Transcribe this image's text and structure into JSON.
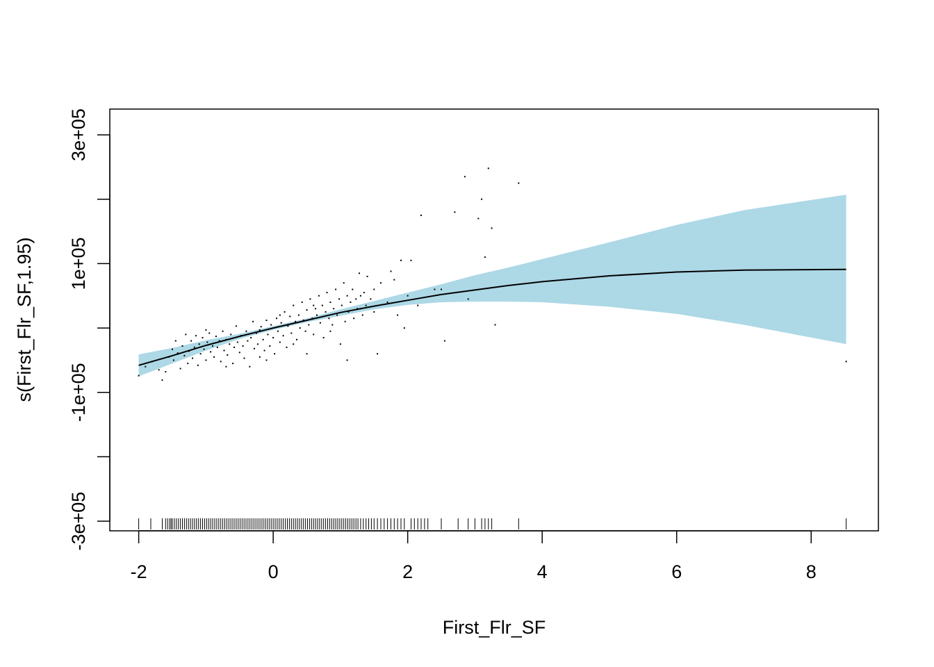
{
  "chart_data": {
    "type": "line",
    "title": "",
    "xlabel": "First_Flr_SF",
    "ylabel": "s(First_Flr_SF,1.95)",
    "xlim": [
      -2.43,
      9.0
    ],
    "ylim": [
      -315000,
      340000
    ],
    "x_ticks": [
      -2,
      0,
      2,
      4,
      6,
      8
    ],
    "x_tick_labels": [
      "-2",
      "0",
      "2",
      "4",
      "6",
      "8"
    ],
    "y_ticks": [
      -300000,
      -200000,
      -100000,
      0,
      100000,
      200000,
      300000
    ],
    "y_tick_labels": [
      "-3e+05",
      "",
      "-1e+05",
      "",
      "1e+05",
      "",
      "3e+05"
    ],
    "colors": {
      "band": "#add8e6",
      "line": "#000000",
      "points": "#000000"
    },
    "fit": {
      "x": [
        -2.0,
        -1.5,
        -1.0,
        -0.5,
        0.0,
        0.5,
        1.0,
        1.5,
        2.0,
        2.5,
        3.0,
        3.5,
        4.0,
        5.0,
        6.0,
        7.0,
        8.52
      ],
      "y": [
        -58000,
        -43000,
        -27000,
        -13000,
        0,
        12000,
        24000,
        34000,
        43000,
        52000,
        59000,
        66000,
        72000,
        81000,
        87000,
        90000,
        91000
      ],
      "lower": [
        -75000,
        -55000,
        -35000,
        -17000,
        -3000,
        9000,
        19000,
        29000,
        36000,
        40000,
        41000,
        41000,
        40000,
        33000,
        22000,
        5000,
        -25000
      ],
      "upper": [
        -41000,
        -31000,
        -19000,
        -9000,
        3000,
        15000,
        29000,
        42000,
        55000,
        68000,
        82000,
        94000,
        107000,
        133000,
        160000,
        183000,
        207000
      ]
    },
    "rug_x": [
      -2.0,
      -1.82,
      -1.65,
      -1.6,
      -1.57,
      -1.54,
      -1.52,
      -1.5,
      -1.47,
      -1.44,
      -1.41,
      -1.38,
      -1.35,
      -1.32,
      -1.29,
      -1.26,
      -1.23,
      -1.2,
      -1.17,
      -1.14,
      -1.11,
      -1.08,
      -1.05,
      -1.02,
      -0.99,
      -0.96,
      -0.93,
      -0.9,
      -0.87,
      -0.84,
      -0.81,
      -0.78,
      -0.75,
      -0.72,
      -0.69,
      -0.66,
      -0.63,
      -0.6,
      -0.57,
      -0.54,
      -0.51,
      -0.48,
      -0.45,
      -0.42,
      -0.39,
      -0.36,
      -0.33,
      -0.3,
      -0.27,
      -0.24,
      -0.21,
      -0.18,
      -0.15,
      -0.12,
      -0.09,
      -0.06,
      -0.03,
      0.0,
      0.03,
      0.06,
      0.09,
      0.12,
      0.15,
      0.18,
      0.21,
      0.24,
      0.27,
      0.3,
      0.33,
      0.36,
      0.39,
      0.42,
      0.45,
      0.48,
      0.51,
      0.54,
      0.57,
      0.6,
      0.63,
      0.66,
      0.69,
      0.72,
      0.75,
      0.78,
      0.81,
      0.84,
      0.87,
      0.9,
      0.93,
      0.96,
      0.99,
      1.02,
      1.05,
      1.08,
      1.11,
      1.14,
      1.17,
      1.2,
      1.23,
      1.26,
      1.3,
      1.34,
      1.38,
      1.42,
      1.46,
      1.5,
      1.55,
      1.6,
      1.65,
      1.7,
      1.75,
      1.8,
      1.85,
      1.9,
      1.95,
      2.05,
      2.1,
      2.15,
      2.2,
      2.25,
      2.3,
      2.5,
      2.75,
      2.9,
      3.0,
      3.1,
      3.15,
      3.2,
      3.25,
      3.65,
      8.52
    ],
    "points": [
      [
        -2.0,
        -74000
      ],
      [
        -1.9,
        -60000
      ],
      [
        -1.8,
        -52000
      ],
      [
        -1.7,
        -65000
      ],
      [
        -1.65,
        -81000
      ],
      [
        -1.6,
        -68000
      ],
      [
        -1.55,
        -45000
      ],
      [
        -1.5,
        -33000
      ],
      [
        -1.48,
        -50000
      ],
      [
        -1.45,
        -20000
      ],
      [
        -1.42,
        -39000
      ],
      [
        -1.38,
        -63000
      ],
      [
        -1.35,
        -28000
      ],
      [
        -1.32,
        -43000
      ],
      [
        -1.3,
        -10000
      ],
      [
        -1.27,
        -55000
      ],
      [
        -1.25,
        -36000
      ],
      [
        -1.22,
        -20000
      ],
      [
        -1.2,
        -47000
      ],
      [
        -1.17,
        -30000
      ],
      [
        -1.15,
        -12000
      ],
      [
        -1.12,
        -58000
      ],
      [
        -1.1,
        -25000
      ],
      [
        -1.08,
        -40000
      ],
      [
        -1.05,
        -15000
      ],
      [
        -1.03,
        -33000
      ],
      [
        -1.0,
        -50000
      ],
      [
        -0.98,
        -22000
      ],
      [
        -0.95,
        -8000
      ],
      [
        -0.93,
        -37000
      ],
      [
        -0.9,
        -28000
      ],
      [
        -0.88,
        -45000
      ],
      [
        -0.85,
        -13000
      ],
      [
        -0.83,
        -30000
      ],
      [
        -0.8,
        -20000
      ],
      [
        -0.78,
        -52000
      ],
      [
        -0.75,
        -5000
      ],
      [
        -0.73,
        -35000
      ],
      [
        -0.7,
        -18000
      ],
      [
        -0.68,
        -42000
      ],
      [
        -0.65,
        -25000
      ],
      [
        -0.63,
        -10000
      ],
      [
        -0.6,
        -55000
      ],
      [
        -0.58,
        -30000
      ],
      [
        -0.55,
        3000
      ],
      [
        -0.53,
        -22000
      ],
      [
        -0.5,
        -38000
      ],
      [
        -0.48,
        -12000
      ],
      [
        -0.45,
        -28000
      ],
      [
        -0.43,
        -47000
      ],
      [
        -0.4,
        -5000
      ],
      [
        -0.38,
        -20000
      ],
      [
        -0.35,
        -60000
      ],
      [
        -0.33,
        -15000
      ],
      [
        -0.3,
        10000
      ],
      [
        -0.28,
        -32000
      ],
      [
        -0.25,
        -8000
      ],
      [
        -0.23,
        -25000
      ],
      [
        -0.2,
        -45000
      ],
      [
        -0.18,
        2000
      ],
      [
        -0.15,
        -18000
      ],
      [
        -0.13,
        -35000
      ],
      [
        -0.1,
        12000
      ],
      [
        -0.08,
        -10000
      ],
      [
        -0.05,
        -28000
      ],
      [
        -0.03,
        5000
      ],
      [
        0.0,
        -15000
      ],
      [
        0.02,
        -40000
      ],
      [
        0.05,
        15000
      ],
      [
        0.07,
        -5000
      ],
      [
        0.1,
        -22000
      ],
      [
        0.12,
        8000
      ],
      [
        0.15,
        -12000
      ],
      [
        0.17,
        25000
      ],
      [
        0.2,
        -30000
      ],
      [
        0.22,
        3000
      ],
      [
        0.25,
        18000
      ],
      [
        0.27,
        -8000
      ],
      [
        0.3,
        35000
      ],
      [
        0.33,
        10000
      ],
      [
        0.35,
        -18000
      ],
      [
        0.38,
        20000
      ],
      [
        0.4,
        0
      ],
      [
        0.43,
        40000
      ],
      [
        0.45,
        12000
      ],
      [
        0.48,
        -5000
      ],
      [
        0.5,
        28000
      ],
      [
        0.53,
        5000
      ],
      [
        0.55,
        45000
      ],
      [
        0.58,
        15000
      ],
      [
        0.6,
        -10000
      ],
      [
        0.63,
        30000
      ],
      [
        0.65,
        20000
      ],
      [
        0.68,
        50000
      ],
      [
        0.7,
        8000
      ],
      [
        0.73,
        35000
      ],
      [
        0.75,
        -15000
      ],
      [
        0.78,
        25000
      ],
      [
        0.8,
        55000
      ],
      [
        0.83,
        15000
      ],
      [
        0.85,
        40000
      ],
      [
        0.88,
        5000
      ],
      [
        0.9,
        30000
      ],
      [
        0.93,
        60000
      ],
      [
        0.95,
        20000
      ],
      [
        0.98,
        45000
      ],
      [
        1.0,
        -25000
      ],
      [
        1.02,
        35000
      ],
      [
        1.05,
        70000
      ],
      [
        1.07,
        10000
      ],
      [
        1.1,
        50000
      ],
      [
        1.12,
        25000
      ],
      [
        1.15,
        40000
      ],
      [
        1.18,
        60000
      ],
      [
        1.2,
        15000
      ],
      [
        1.23,
        45000
      ],
      [
        1.25,
        30000
      ],
      [
        1.28,
        85000
      ],
      [
        1.3,
        50000
      ],
      [
        1.33,
        20000
      ],
      [
        1.35,
        55000
      ],
      [
        1.38,
        35000
      ],
      [
        1.4,
        80000
      ],
      [
        1.45,
        45000
      ],
      [
        1.5,
        60000
      ],
      [
        1.55,
        -40000
      ],
      [
        1.6,
        70000
      ],
      [
        1.7,
        40000
      ],
      [
        1.75,
        88000
      ],
      [
        1.8,
        75000
      ],
      [
        1.9,
        105000
      ],
      [
        1.95,
        0
      ],
      [
        2.0,
        50000
      ],
      [
        2.05,
        105000
      ],
      [
        2.15,
        35000
      ],
      [
        2.2,
        175000
      ],
      [
        2.5,
        60000
      ],
      [
        2.55,
        -20000
      ],
      [
        2.7,
        180000
      ],
      [
        2.85,
        235000
      ],
      [
        2.9,
        45000
      ],
      [
        3.05,
        170000
      ],
      [
        3.1,
        200000
      ],
      [
        3.15,
        110000
      ],
      [
        3.2,
        248000
      ],
      [
        3.25,
        155000
      ],
      [
        3.3,
        5000
      ],
      [
        3.65,
        225000
      ],
      [
        8.52,
        -52000
      ],
      [
        -0.2,
        -3000
      ],
      [
        0.1,
        20000
      ],
      [
        0.3,
        -25000
      ],
      [
        0.6,
        35000
      ],
      [
        -0.7,
        -60000
      ],
      [
        -1.0,
        -3000
      ],
      [
        1.5,
        25000
      ],
      [
        1.85,
        20000
      ],
      [
        2.4,
        60000
      ],
      [
        -0.1,
        -50000
      ],
      [
        0.5,
        -40000
      ],
      [
        0.85,
        -5000
      ],
      [
        1.1,
        -50000
      ],
      [
        1.3,
        30000
      ]
    ]
  }
}
